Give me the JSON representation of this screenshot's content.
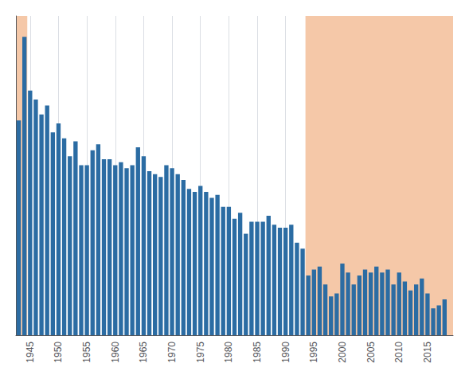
{
  "chart_data": {
    "type": "bar",
    "x": [
      1943,
      1944,
      1945,
      1946,
      1947,
      1948,
      1949,
      1950,
      1951,
      1952,
      1953,
      1954,
      1955,
      1956,
      1957,
      1958,
      1959,
      1960,
      1961,
      1962,
      1963,
      1964,
      1965,
      1966,
      1967,
      1968,
      1969,
      1970,
      1971,
      1972,
      1973,
      1974,
      1975,
      1976,
      1977,
      1978,
      1979,
      1980,
      1981,
      1982,
      1983,
      1984,
      1985,
      1986,
      1987,
      1988,
      1989,
      1990,
      1991,
      1992,
      1993,
      1994,
      1995,
      1996,
      1997,
      1998,
      1999,
      2000,
      2001,
      2002,
      2003,
      2004,
      2005,
      2006,
      2007,
      2008,
      2009,
      2010,
      2011,
      2012,
      2013,
      2014,
      2015,
      2016,
      2017,
      2018
    ],
    "values": [
      72,
      100,
      82,
      79,
      74,
      77,
      68,
      71,
      66,
      60,
      65,
      57,
      57,
      62,
      64,
      59,
      59,
      57,
      58,
      56,
      57,
      63,
      60,
      55,
      54,
      53,
      57,
      56,
      54,
      52,
      49,
      48,
      50,
      48,
      46,
      47,
      43,
      43,
      39,
      41,
      34,
      38,
      38,
      38,
      40,
      37,
      36,
      36,
      37,
      31,
      29,
      20,
      22,
      23,
      17,
      13,
      14,
      24,
      21,
      17,
      20,
      22,
      21,
      23,
      21,
      22,
      17,
      21,
      18,
      15,
      17,
      19,
      14,
      9,
      10,
      12
    ],
    "color": "#2b6ca3",
    "highlights": [
      {
        "start": 1942.5,
        "end": 1944.5,
        "color": "#f5c8a8"
      },
      {
        "start": 1993.5,
        "end": 2019.5,
        "color": "#f5c8a8"
      }
    ],
    "xlim": [
      1942.5,
      2019.5
    ],
    "xticks": [
      1945,
      1950,
      1955,
      1960,
      1965,
      1970,
      1975,
      1980,
      1985,
      1990,
      1995,
      2000,
      2005,
      2010,
      2015
    ],
    "ylim": [
      0,
      107
    ],
    "yticks": [],
    "grid": true,
    "tick_labels": "x"
  }
}
